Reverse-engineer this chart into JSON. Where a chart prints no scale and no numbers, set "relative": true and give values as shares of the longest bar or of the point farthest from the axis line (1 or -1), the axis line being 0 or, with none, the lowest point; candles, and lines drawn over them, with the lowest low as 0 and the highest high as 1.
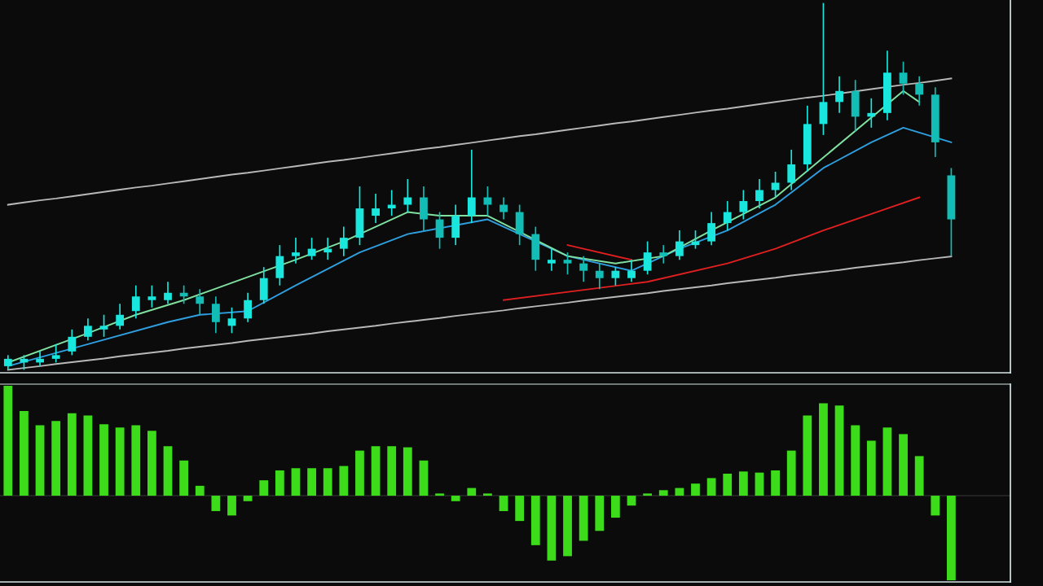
{
  "chart_data": [
    {
      "type": "candlestick",
      "relative": true,
      "color": "#19e6dc",
      "categories": [
        null,
        null,
        null,
        null,
        null,
        null,
        null,
        null,
        null,
        null,
        null,
        null,
        null,
        null,
        null,
        null,
        null,
        null,
        null,
        null,
        null,
        null,
        null,
        null,
        null,
        null,
        null,
        null,
        null,
        null,
        null,
        null,
        null,
        null,
        null,
        null,
        null,
        null,
        null,
        null,
        null,
        null,
        null,
        null,
        null,
        null,
        null,
        null,
        null,
        null,
        null,
        null,
        null,
        null,
        null,
        null,
        null,
        null,
        null,
        null
      ],
      "colors": [
        "#19e6dc",
        "#19e6dc",
        "#19e6dc",
        "#19e6dc",
        "#19e6dc",
        "#19e6dc",
        "#19e6dc",
        "#19e6dc",
        "#19e6dc",
        "#19e6dc",
        "#19e6dc",
        "#12bdb5",
        "#12bdb5",
        "#12bdb5",
        "#19e6dc",
        "#19e6dc",
        "#19e6dc",
        "#19e6dc",
        "#19e6dc",
        "#19e6dc",
        "#19e6dc",
        "#19e6dc",
        "#19e6dc",
        "#19e6dc",
        "#19e6dc",
        "#19e6dc",
        "#12bdb5",
        "#12bdb5",
        "#19e6dc",
        "#19e6dc",
        "#12bdb5",
        "#12bdb5",
        "#12bdb5",
        "#12bdb5",
        "#19e6dc",
        "#12bdb5",
        "#12bdb5",
        "#12bdb5",
        "#19e6dc",
        "#19e6dc",
        "#19e6dc",
        "#12bdb5",
        "#19e6dc",
        "#19e6dc",
        "#19e6dc",
        "#19e6dc",
        "#19e6dc",
        "#19e6dc",
        "#19e6dc",
        "#19e6dc",
        "#19e6dc",
        "#19e6dc",
        "#19e6dc",
        "#12bdb5",
        "#19e6dc",
        "#19e6dc",
        "#12bdb5",
        "#12bdb5",
        "#12bdb5",
        "#12bdb5"
      ],
      "ohlc": [
        [
          0.01,
          0.04,
          0.0,
          0.03
        ],
        [
          0.02,
          0.04,
          0.0,
          0.03
        ],
        [
          0.02,
          0.05,
          0.01,
          0.03
        ],
        [
          0.03,
          0.07,
          0.02,
          0.04
        ],
        [
          0.05,
          0.11,
          0.04,
          0.09
        ],
        [
          0.09,
          0.14,
          0.08,
          0.12
        ],
        [
          0.11,
          0.15,
          0.09,
          0.12
        ],
        [
          0.12,
          0.18,
          0.11,
          0.15
        ],
        [
          0.16,
          0.23,
          0.14,
          0.2
        ],
        [
          0.19,
          0.23,
          0.17,
          0.2
        ],
        [
          0.19,
          0.24,
          0.18,
          0.21
        ],
        [
          0.21,
          0.23,
          0.18,
          0.2
        ],
        [
          0.2,
          0.22,
          0.15,
          0.18
        ],
        [
          0.18,
          0.2,
          0.1,
          0.13
        ],
        [
          0.12,
          0.17,
          0.1,
          0.14
        ],
        [
          0.14,
          0.21,
          0.13,
          0.19
        ],
        [
          0.19,
          0.28,
          0.18,
          0.25
        ],
        [
          0.25,
          0.34,
          0.23,
          0.31
        ],
        [
          0.31,
          0.36,
          0.29,
          0.32
        ],
        [
          0.31,
          0.36,
          0.3,
          0.33
        ],
        [
          0.32,
          0.36,
          0.3,
          0.33
        ],
        [
          0.33,
          0.39,
          0.31,
          0.36
        ],
        [
          0.36,
          0.5,
          0.34,
          0.44
        ],
        [
          0.42,
          0.48,
          0.4,
          0.44
        ],
        [
          0.44,
          0.49,
          0.42,
          0.45
        ],
        [
          0.45,
          0.52,
          0.43,
          0.47
        ],
        [
          0.47,
          0.5,
          0.38,
          0.41
        ],
        [
          0.41,
          0.43,
          0.33,
          0.36
        ],
        [
          0.36,
          0.45,
          0.34,
          0.42
        ],
        [
          0.42,
          0.6,
          0.4,
          0.47
        ],
        [
          0.47,
          0.5,
          0.42,
          0.45
        ],
        [
          0.45,
          0.47,
          0.41,
          0.43
        ],
        [
          0.43,
          0.45,
          0.34,
          0.37
        ],
        [
          0.37,
          0.39,
          0.27,
          0.3
        ],
        [
          0.29,
          0.33,
          0.27,
          0.3
        ],
        [
          0.3,
          0.32,
          0.26,
          0.29
        ],
        [
          0.29,
          0.31,
          0.24,
          0.27
        ],
        [
          0.27,
          0.29,
          0.22,
          0.25
        ],
        [
          0.25,
          0.28,
          0.23,
          0.27
        ],
        [
          0.25,
          0.3,
          0.24,
          0.27
        ],
        [
          0.27,
          0.35,
          0.26,
          0.32
        ],
        [
          0.32,
          0.34,
          0.29,
          0.31
        ],
        [
          0.31,
          0.38,
          0.3,
          0.35
        ],
        [
          0.34,
          0.38,
          0.33,
          0.35
        ],
        [
          0.35,
          0.43,
          0.34,
          0.4
        ],
        [
          0.4,
          0.46,
          0.38,
          0.43
        ],
        [
          0.43,
          0.49,
          0.41,
          0.46
        ],
        [
          0.46,
          0.52,
          0.44,
          0.49
        ],
        [
          0.49,
          0.54,
          0.47,
          0.51
        ],
        [
          0.51,
          0.6,
          0.49,
          0.56
        ],
        [
          0.56,
          0.72,
          0.54,
          0.67
        ],
        [
          0.67,
          1.0,
          0.64,
          0.73
        ],
        [
          0.73,
          0.8,
          0.7,
          0.76
        ],
        [
          0.76,
          0.79,
          0.65,
          0.69
        ],
        [
          0.69,
          0.74,
          0.66,
          0.7
        ],
        [
          0.7,
          0.87,
          0.68,
          0.81
        ],
        [
          0.81,
          0.84,
          0.75,
          0.78
        ],
        [
          0.78,
          0.8,
          0.72,
          0.75
        ],
        [
          0.75,
          0.77,
          0.58,
          0.62
        ],
        [
          0.53,
          0.55,
          0.31,
          0.41
        ]
      ],
      "series": [
        {
          "type": "line",
          "color": "#b8b8b8",
          "values": [
            0.45,
            0.456,
            0.462,
            0.467,
            0.473,
            0.479,
            0.485,
            0.491,
            0.497,
            0.502,
            0.508,
            0.514,
            0.52,
            0.526,
            0.532,
            0.537,
            0.543,
            0.549,
            0.555,
            0.561,
            0.567,
            0.572,
            0.578,
            0.584,
            0.59,
            0.596,
            0.602,
            0.607,
            0.613,
            0.619,
            0.625,
            0.631,
            0.637,
            0.642,
            0.648,
            0.654,
            0.66,
            0.666,
            0.672,
            0.677,
            0.683,
            0.689,
            0.695,
            0.701,
            0.707,
            0.712,
            0.718,
            0.724,
            0.73,
            0.736,
            0.742,
            0.747,
            null,
            0.759,
            0.765,
            null,
            0.777,
            0.782,
            0.788,
            0.794
          ]
        },
        {
          "type": "line",
          "color": "#b8b8b8",
          "values": [
            0.0,
            0.005,
            0.01,
            0.016,
            0.021,
            0.026,
            0.031,
            0.037,
            0.042,
            0.047,
            0.052,
            0.058,
            0.063,
            0.068,
            0.073,
            0.079,
            0.084,
            0.089,
            0.094,
            0.099,
            0.105,
            0.11,
            0.115,
            0.12,
            0.126,
            0.131,
            0.136,
            0.141,
            0.147,
            0.152,
            0.157,
            0.162,
            0.168,
            0.173,
            0.178,
            0.183,
            0.189,
            0.194,
            0.199,
            0.204,
            0.209,
            0.215,
            0.22,
            0.225,
            0.23,
            0.236,
            0.241,
            0.246,
            0.251,
            0.257,
            0.262,
            0.267,
            0.272,
            0.278,
            0.283,
            0.288,
            0.293,
            0.299,
            0.304,
            0.309
          ]
        },
        {
          "type": "line",
          "color": "#2f9fe0",
          "values": [
            0.01,
            null,
            null,
            null,
            null,
            0.07,
            null,
            null,
            null,
            null,
            0.13,
            null,
            0.15,
            null,
            null,
            0.16,
            null,
            null,
            0.23,
            null,
            null,
            null,
            0.32,
            null,
            null,
            0.37,
            null,
            null,
            null,
            null,
            0.41,
            null,
            0.37,
            null,
            null,
            0.31,
            null,
            null,
            null,
            0.27,
            null,
            null,
            0.33,
            null,
            null,
            0.38,
            null,
            null,
            0.45,
            null,
            null,
            0.55,
            null,
            null,
            0.62,
            null,
            0.66,
            null,
            null,
            0.62
          ]
        },
        {
          "type": "line",
          "color": "#e02020",
          "values": [
            null,
            null,
            null,
            null,
            null,
            null,
            null,
            null,
            null,
            null,
            null,
            null,
            null,
            null,
            null,
            null,
            null,
            null,
            null,
            null,
            null,
            null,
            null,
            null,
            null,
            null,
            null,
            null,
            null,
            null,
            null,
            0.19,
            null,
            null,
            null,
            null,
            null,
            null,
            null,
            null,
            0.24,
            null,
            null,
            null,
            null,
            0.29,
            null,
            null,
            0.33,
            null,
            null,
            0.38,
            null,
            null,
            null,
            0.44,
            null,
            0.47,
            null,
            null
          ]
        },
        {
          "type": "line",
          "color": "#e02020",
          "values": [
            null,
            null,
            null,
            null,
            null,
            null,
            null,
            null,
            null,
            null,
            null,
            null,
            null,
            null,
            null,
            null,
            null,
            null,
            null,
            null,
            null,
            null,
            null,
            null,
            null,
            null,
            null,
            null,
            null,
            null,
            null,
            null,
            null,
            null,
            null,
            0.34,
            null,
            null,
            null,
            0.3,
            null,
            null,
            null,
            null,
            null,
            null,
            null,
            null,
            null,
            null,
            null,
            null,
            null,
            null,
            null,
            null,
            null,
            null,
            null,
            null
          ]
        },
        {
          "type": "line",
          "color": "#7fe0a0",
          "values": [
            0.02,
            null,
            null,
            null,
            null,
            0.1,
            null,
            null,
            0.15,
            null,
            null,
            0.19,
            null,
            null,
            null,
            null,
            null,
            null,
            0.3,
            null,
            null,
            0.35,
            null,
            null,
            null,
            0.43,
            null,
            0.42,
            null,
            null,
            0.42,
            null,
            null,
            null,
            null,
            0.31,
            null,
            null,
            0.29,
            null,
            null,
            0.31,
            null,
            null,
            0.38,
            null,
            null,
            null,
            0.47,
            null,
            null,
            null,
            null,
            null,
            null,
            null,
            0.76,
            0.73,
            null,
            null
          ]
        }
      ]
    },
    {
      "type": "bar",
      "relative": true,
      "color": "#3ddc1a",
      "categories": [
        null,
        null,
        null,
        null,
        null,
        null,
        null,
        null,
        null,
        null,
        null,
        null,
        null,
        null,
        null,
        null,
        null,
        null,
        null,
        null,
        null,
        null,
        null,
        null,
        null,
        null,
        null,
        null,
        null,
        null,
        null,
        null,
        null,
        null,
        null,
        null,
        null,
        null,
        null,
        null,
        null,
        null,
        null,
        null,
        null,
        null,
        null,
        null,
        null,
        null,
        null,
        null,
        null,
        null,
        null,
        null,
        null,
        null,
        null,
        null
      ],
      "values": [
        1.0,
        0.77,
        0.64,
        0.68,
        0.75,
        0.73,
        0.65,
        0.62,
        0.64,
        0.59,
        0.45,
        0.32,
        0.09,
        -0.14,
        -0.18,
        -0.05,
        0.14,
        0.23,
        0.25,
        0.25,
        0.25,
        0.27,
        0.41,
        0.45,
        0.45,
        0.44,
        0.32,
        0.02,
        -0.05,
        0.07,
        0.02,
        -0.14,
        -0.23,
        -0.45,
        -0.59,
        -0.55,
        -0.41,
        -0.32,
        -0.2,
        -0.09,
        0.02,
        0.05,
        0.07,
        0.11,
        0.16,
        0.2,
        0.22,
        0.21,
        0.23,
        0.41,
        0.73,
        0.84,
        0.82,
        0.64,
        0.5,
        0.62,
        0.56,
        0.36,
        -0.18,
        -0.77
      ]
    }
  ]
}
